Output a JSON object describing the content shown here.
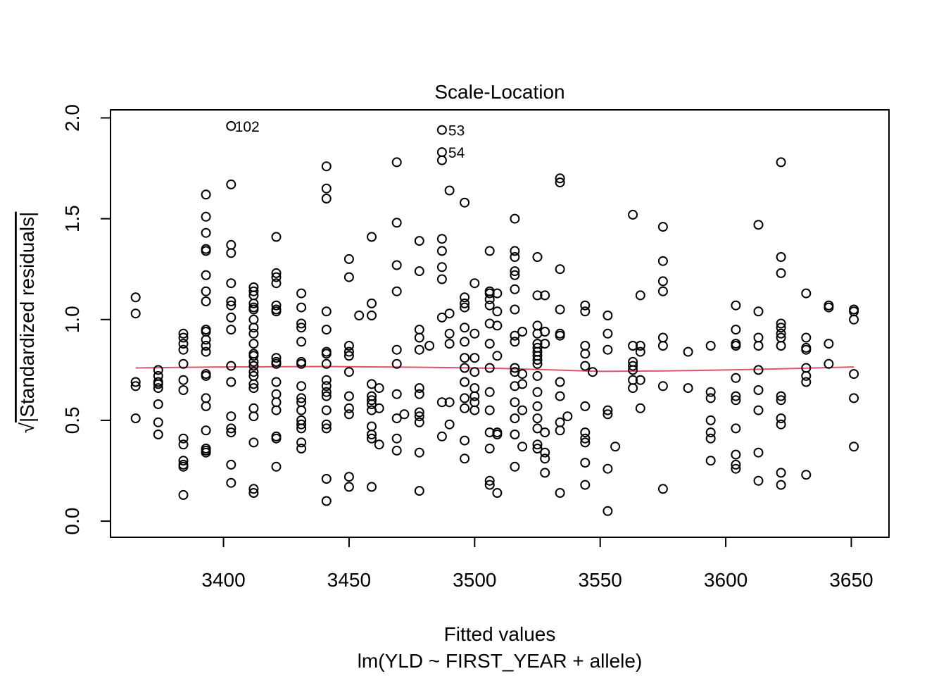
{
  "chart_data": {
    "type": "scatter",
    "title": "Scale-Location",
    "xlabel": "Fitted values",
    "sublabel": "lm(YLD ~ FIRST_YEAR + allele)",
    "ylabel_radical": "√",
    "ylabel": "|Standardized residuals|",
    "xlim": [
      3355,
      3665
    ],
    "ylim": [
      -0.08,
      2.04
    ],
    "x_ticks": [
      3400,
      3450,
      3500,
      3550,
      3600,
      3650
    ],
    "y_ticks": [
      0.0,
      0.5,
      1.0,
      1.5,
      2.0
    ],
    "x_tick_labels": [
      "3400",
      "3450",
      "3500",
      "3550",
      "3600",
      "3650"
    ],
    "y_tick_labels": [
      "0.0",
      "0.5",
      "1.0",
      "1.5",
      "2.0"
    ],
    "grid": false,
    "smooth_color": "#DF536B",
    "smooth_line": [
      [
        3365,
        0.76
      ],
      [
        3400,
        0.765
      ],
      [
        3440,
        0.767
      ],
      [
        3480,
        0.763
      ],
      [
        3510,
        0.758
      ],
      [
        3550,
        0.743
      ],
      [
        3575,
        0.745
      ],
      [
        3610,
        0.752
      ],
      [
        3651,
        0.765
      ]
    ],
    "annotations": [
      {
        "label": "102",
        "x": 3402,
        "y": 1.96
      },
      {
        "label": "53",
        "x": 3487,
        "y": 1.94
      },
      {
        "label": "54",
        "x": 3487,
        "y": 1.83
      }
    ],
    "points": [
      [
        3365,
        1.11
      ],
      [
        3365,
        1.03
      ],
      [
        3365,
        0.69
      ],
      [
        3365,
        0.67
      ],
      [
        3365,
        0.51
      ],
      [
        3374,
        0.75
      ],
      [
        3374,
        0.72
      ],
      [
        3374,
        0.69
      ],
      [
        3374,
        0.68
      ],
      [
        3374,
        0.66
      ],
      [
        3374,
        0.58
      ],
      [
        3374,
        0.49
      ],
      [
        3374,
        0.43
      ],
      [
        3384,
        0.93
      ],
      [
        3384,
        0.91
      ],
      [
        3384,
        0.88
      ],
      [
        3384,
        0.85
      ],
      [
        3384,
        0.78
      ],
      [
        3384,
        0.7
      ],
      [
        3384,
        0.65
      ],
      [
        3384,
        0.41
      ],
      [
        3384,
        0.38
      ],
      [
        3384,
        0.3
      ],
      [
        3384,
        0.28
      ],
      [
        3384,
        0.27
      ],
      [
        3384,
        0.13
      ],
      [
        3393,
        1.62
      ],
      [
        3393,
        1.51
      ],
      [
        3393,
        1.43
      ],
      [
        3393,
        1.35
      ],
      [
        3393,
        1.34
      ],
      [
        3393,
        1.22
      ],
      [
        3393,
        1.14
      ],
      [
        3393,
        1.09
      ],
      [
        3393,
        0.95
      ],
      [
        3393,
        0.94
      ],
      [
        3393,
        0.9
      ],
      [
        3393,
        0.87
      ],
      [
        3393,
        0.84
      ],
      [
        3393,
        0.73
      ],
      [
        3393,
        0.72
      ],
      [
        3393,
        0.61
      ],
      [
        3393,
        0.57
      ],
      [
        3393,
        0.45
      ],
      [
        3393,
        0.36
      ],
      [
        3393,
        0.35
      ],
      [
        3393,
        0.34
      ],
      [
        3403,
        1.96
      ],
      [
        3403,
        1.67
      ],
      [
        3403,
        1.37
      ],
      [
        3403,
        1.33
      ],
      [
        3403,
        1.18
      ],
      [
        3403,
        1.09
      ],
      [
        3403,
        1.07
      ],
      [
        3403,
        1.01
      ],
      [
        3403,
        0.95
      ],
      [
        3403,
        0.77
      ],
      [
        3403,
        0.69
      ],
      [
        3403,
        0.52
      ],
      [
        3403,
        0.46
      ],
      [
        3403,
        0.44
      ],
      [
        3403,
        0.28
      ],
      [
        3403,
        0.19
      ],
      [
        3412,
        1.16
      ],
      [
        3412,
        1.14
      ],
      [
        3412,
        1.12
      ],
      [
        3412,
        1.08
      ],
      [
        3412,
        1.06
      ],
      [
        3412,
        1.05
      ],
      [
        3412,
        1.0
      ],
      [
        3412,
        0.96
      ],
      [
        3412,
        0.93
      ],
      [
        3412,
        0.88
      ],
      [
        3412,
        0.83
      ],
      [
        3412,
        0.82
      ],
      [
        3412,
        0.79
      ],
      [
        3412,
        0.77
      ],
      [
        3412,
        0.74
      ],
      [
        3412,
        0.72
      ],
      [
        3412,
        0.68
      ],
      [
        3412,
        0.66
      ],
      [
        3412,
        0.56
      ],
      [
        3412,
        0.52
      ],
      [
        3412,
        0.39
      ],
      [
        3412,
        0.16
      ],
      [
        3412,
        0.14
      ],
      [
        3421,
        1.41
      ],
      [
        3421,
        1.23
      ],
      [
        3421,
        1.21
      ],
      [
        3421,
        1.18
      ],
      [
        3421,
        1.07
      ],
      [
        3421,
        1.05
      ],
      [
        3421,
        1.04
      ],
      [
        3421,
        0.81
      ],
      [
        3421,
        0.79
      ],
      [
        3421,
        0.78
      ],
      [
        3421,
        0.69
      ],
      [
        3421,
        0.63
      ],
      [
        3421,
        0.59
      ],
      [
        3421,
        0.55
      ],
      [
        3421,
        0.42
      ],
      [
        3421,
        0.41
      ],
      [
        3421,
        0.27
      ],
      [
        3431,
        1.13
      ],
      [
        3431,
        1.06
      ],
      [
        3431,
        0.98
      ],
      [
        3431,
        0.96
      ],
      [
        3431,
        0.89
      ],
      [
        3431,
        0.79
      ],
      [
        3431,
        0.78
      ],
      [
        3431,
        0.67
      ],
      [
        3431,
        0.61
      ],
      [
        3431,
        0.59
      ],
      [
        3431,
        0.55
      ],
      [
        3431,
        0.5
      ],
      [
        3431,
        0.48
      ],
      [
        3431,
        0.46
      ],
      [
        3431,
        0.39
      ],
      [
        3431,
        0.36
      ],
      [
        3441,
        1.76
      ],
      [
        3441,
        1.65
      ],
      [
        3441,
        1.6
      ],
      [
        3441,
        1.04
      ],
      [
        3441,
        0.95
      ],
      [
        3441,
        0.84
      ],
      [
        3441,
        0.83
      ],
      [
        3441,
        0.78
      ],
      [
        3441,
        0.7
      ],
      [
        3441,
        0.67
      ],
      [
        3441,
        0.64
      ],
      [
        3441,
        0.62
      ],
      [
        3441,
        0.55
      ],
      [
        3441,
        0.48
      ],
      [
        3441,
        0.46
      ],
      [
        3441,
        0.21
      ],
      [
        3441,
        0.1
      ],
      [
        3450,
        1.3
      ],
      [
        3450,
        1.21
      ],
      [
        3450,
        0.87
      ],
      [
        3450,
        0.84
      ],
      [
        3450,
        0.82
      ],
      [
        3450,
        0.74
      ],
      [
        3450,
        0.62
      ],
      [
        3450,
        0.56
      ],
      [
        3450,
        0.53
      ],
      [
        3450,
        0.22
      ],
      [
        3450,
        0.17
      ],
      [
        3454,
        1.02
      ],
      [
        3459,
        1.41
      ],
      [
        3459,
        1.08
      ],
      [
        3459,
        1.02
      ],
      [
        3459,
        0.68
      ],
      [
        3459,
        0.62
      ],
      [
        3459,
        0.6
      ],
      [
        3459,
        0.58
      ],
      [
        3459,
        0.55
      ],
      [
        3459,
        0.47
      ],
      [
        3459,
        0.43
      ],
      [
        3459,
        0.41
      ],
      [
        3459,
        0.17
      ],
      [
        3462,
        0.66
      ],
      [
        3462,
        0.56
      ],
      [
        3462,
        0.38
      ],
      [
        3469,
        1.78
      ],
      [
        3469,
        1.48
      ],
      [
        3469,
        1.27
      ],
      [
        3469,
        1.14
      ],
      [
        3469,
        0.85
      ],
      [
        3469,
        0.78
      ],
      [
        3469,
        0.63
      ],
      [
        3469,
        0.51
      ],
      [
        3469,
        0.41
      ],
      [
        3469,
        0.35
      ],
      [
        3472,
        0.53
      ],
      [
        3478,
        1.39
      ],
      [
        3478,
        1.24
      ],
      [
        3478,
        0.95
      ],
      [
        3478,
        0.91
      ],
      [
        3478,
        0.85
      ],
      [
        3478,
        0.66
      ],
      [
        3478,
        0.63
      ],
      [
        3478,
        0.54
      ],
      [
        3478,
        0.52
      ],
      [
        3478,
        0.49
      ],
      [
        3478,
        0.34
      ],
      [
        3478,
        0.15
      ],
      [
        3482,
        0.87
      ],
      [
        3487,
        1.94
      ],
      [
        3487,
        1.83
      ],
      [
        3487,
        1.79
      ],
      [
        3487,
        1.4
      ],
      [
        3487,
        1.34
      ],
      [
        3487,
        1.26
      ],
      [
        3487,
        1.2
      ],
      [
        3487,
        1.01
      ],
      [
        3487,
        0.59
      ],
      [
        3487,
        0.42
      ],
      [
        3490,
        1.64
      ],
      [
        3490,
        1.03
      ],
      [
        3490,
        0.93
      ],
      [
        3490,
        0.88
      ],
      [
        3490,
        0.59
      ],
      [
        3490,
        0.48
      ],
      [
        3496,
        1.58
      ],
      [
        3496,
        1.11
      ],
      [
        3496,
        1.08
      ],
      [
        3496,
        1.06
      ],
      [
        3496,
        0.96
      ],
      [
        3496,
        0.89
      ],
      [
        3496,
        0.81
      ],
      [
        3496,
        0.76
      ],
      [
        3496,
        0.69
      ],
      [
        3496,
        0.61
      ],
      [
        3496,
        0.56
      ],
      [
        3496,
        0.4
      ],
      [
        3496,
        0.31
      ],
      [
        3500,
        1.18
      ],
      [
        3500,
        0.93
      ],
      [
        3500,
        0.81
      ],
      [
        3500,
        0.74
      ],
      [
        3500,
        0.66
      ],
      [
        3500,
        0.62
      ],
      [
        3500,
        0.59
      ],
      [
        3500,
        0.55
      ],
      [
        3506,
        1.34
      ],
      [
        3506,
        1.14
      ],
      [
        3506,
        1.13
      ],
      [
        3506,
        1.1
      ],
      [
        3506,
        1.07
      ],
      [
        3506,
        0.98
      ],
      [
        3506,
        0.88
      ],
      [
        3506,
        0.76
      ],
      [
        3506,
        0.64
      ],
      [
        3506,
        0.55
      ],
      [
        3506,
        0.44
      ],
      [
        3506,
        0.36
      ],
      [
        3506,
        0.2
      ],
      [
        3506,
        0.18
      ],
      [
        3509,
        1.13
      ],
      [
        3509,
        1.04
      ],
      [
        3509,
        0.97
      ],
      [
        3509,
        0.82
      ],
      [
        3509,
        0.44
      ],
      [
        3509,
        0.43
      ],
      [
        3509,
        0.14
      ],
      [
        3516,
        1.5
      ],
      [
        3516,
        1.34
      ],
      [
        3516,
        1.31
      ],
      [
        3516,
        1.24
      ],
      [
        3516,
        1.22
      ],
      [
        3516,
        1.15
      ],
      [
        3516,
        1.05
      ],
      [
        3516,
        0.92
      ],
      [
        3516,
        0.89
      ],
      [
        3516,
        0.76
      ],
      [
        3516,
        0.74
      ],
      [
        3516,
        0.67
      ],
      [
        3516,
        0.59
      ],
      [
        3516,
        0.51
      ],
      [
        3516,
        0.43
      ],
      [
        3516,
        0.27
      ],
      [
        3519,
        0.94
      ],
      [
        3519,
        0.73
      ],
      [
        3519,
        0.68
      ],
      [
        3519,
        0.55
      ],
      [
        3519,
        0.37
      ],
      [
        3525,
        1.31
      ],
      [
        3525,
        1.12
      ],
      [
        3525,
        0.97
      ],
      [
        3525,
        0.93
      ],
      [
        3525,
        0.88
      ],
      [
        3525,
        0.86
      ],
      [
        3525,
        0.84
      ],
      [
        3525,
        0.82
      ],
      [
        3525,
        0.8
      ],
      [
        3525,
        0.78
      ],
      [
        3525,
        0.72
      ],
      [
        3525,
        0.64
      ],
      [
        3525,
        0.57
      ],
      [
        3525,
        0.51
      ],
      [
        3525,
        0.46
      ],
      [
        3525,
        0.38
      ],
      [
        3525,
        0.36
      ],
      [
        3528,
        1.12
      ],
      [
        3528,
        0.94
      ],
      [
        3528,
        0.88
      ],
      [
        3528,
        0.44
      ],
      [
        3528,
        0.34
      ],
      [
        3528,
        0.31
      ],
      [
        3528,
        0.24
      ],
      [
        3534,
        1.7
      ],
      [
        3534,
        1.68
      ],
      [
        3534,
        1.25
      ],
      [
        3534,
        1.05
      ],
      [
        3534,
        0.93
      ],
      [
        3534,
        0.92
      ],
      [
        3534,
        0.69
      ],
      [
        3534,
        0.62
      ],
      [
        3534,
        0.49
      ],
      [
        3534,
        0.45
      ],
      [
        3534,
        0.14
      ],
      [
        3537,
        0.52
      ],
      [
        3544,
        1.07
      ],
      [
        3544,
        1.04
      ],
      [
        3544,
        0.87
      ],
      [
        3544,
        0.83
      ],
      [
        3544,
        0.77
      ],
      [
        3544,
        0.57
      ],
      [
        3544,
        0.44
      ],
      [
        3544,
        0.41
      ],
      [
        3544,
        0.39
      ],
      [
        3544,
        0.29
      ],
      [
        3544,
        0.18
      ],
      [
        3547,
        0.74
      ],
      [
        3553,
        1.02
      ],
      [
        3553,
        0.93
      ],
      [
        3553,
        0.85
      ],
      [
        3553,
        0.55
      ],
      [
        3553,
        0.53
      ],
      [
        3553,
        0.26
      ],
      [
        3553,
        0.05
      ],
      [
        3556,
        0.37
      ],
      [
        3563,
        1.52
      ],
      [
        3563,
        0.87
      ],
      [
        3563,
        0.79
      ],
      [
        3563,
        0.77
      ],
      [
        3563,
        0.75
      ],
      [
        3563,
        0.7
      ],
      [
        3563,
        0.66
      ],
      [
        3566,
        1.12
      ],
      [
        3566,
        0.87
      ],
      [
        3566,
        0.84
      ],
      [
        3566,
        0.7
      ],
      [
        3566,
        0.56
      ],
      [
        3575,
        1.46
      ],
      [
        3575,
        1.29
      ],
      [
        3575,
        1.19
      ],
      [
        3575,
        1.14
      ],
      [
        3575,
        0.91
      ],
      [
        3575,
        0.87
      ],
      [
        3575,
        0.67
      ],
      [
        3575,
        0.16
      ],
      [
        3585,
        0.84
      ],
      [
        3585,
        0.66
      ],
      [
        3594,
        0.87
      ],
      [
        3594,
        0.64
      ],
      [
        3594,
        0.61
      ],
      [
        3594,
        0.5
      ],
      [
        3594,
        0.44
      ],
      [
        3594,
        0.41
      ],
      [
        3594,
        0.3
      ],
      [
        3604,
        1.07
      ],
      [
        3604,
        0.95
      ],
      [
        3604,
        0.88
      ],
      [
        3604,
        0.87
      ],
      [
        3604,
        0.71
      ],
      [
        3604,
        0.62
      ],
      [
        3604,
        0.6
      ],
      [
        3604,
        0.46
      ],
      [
        3604,
        0.33
      ],
      [
        3604,
        0.28
      ],
      [
        3604,
        0.26
      ],
      [
        3613,
        1.47
      ],
      [
        3613,
        1.04
      ],
      [
        3613,
        0.91
      ],
      [
        3613,
        0.87
      ],
      [
        3613,
        0.75
      ],
      [
        3613,
        0.65
      ],
      [
        3613,
        0.55
      ],
      [
        3613,
        0.34
      ],
      [
        3613,
        0.2
      ],
      [
        3622,
        1.78
      ],
      [
        3622,
        1.31
      ],
      [
        3622,
        1.23
      ],
      [
        3622,
        0.98
      ],
      [
        3622,
        0.96
      ],
      [
        3622,
        0.93
      ],
      [
        3622,
        0.91
      ],
      [
        3622,
        0.87
      ],
      [
        3622,
        0.62
      ],
      [
        3622,
        0.6
      ],
      [
        3622,
        0.51
      ],
      [
        3622,
        0.48
      ],
      [
        3622,
        0.24
      ],
      [
        3622,
        0.18
      ],
      [
        3632,
        1.13
      ],
      [
        3632,
        0.91
      ],
      [
        3632,
        0.86
      ],
      [
        3632,
        0.85
      ],
      [
        3632,
        0.76
      ],
      [
        3632,
        0.72
      ],
      [
        3632,
        0.69
      ],
      [
        3632,
        0.23
      ],
      [
        3641,
        1.07
      ],
      [
        3641,
        1.06
      ],
      [
        3641,
        0.88
      ],
      [
        3641,
        0.78
      ],
      [
        3651,
        1.05
      ],
      [
        3651,
        1.04
      ],
      [
        3651,
        1.0
      ],
      [
        3651,
        0.73
      ],
      [
        3651,
        0.61
      ],
      [
        3651,
        0.37
      ]
    ]
  }
}
